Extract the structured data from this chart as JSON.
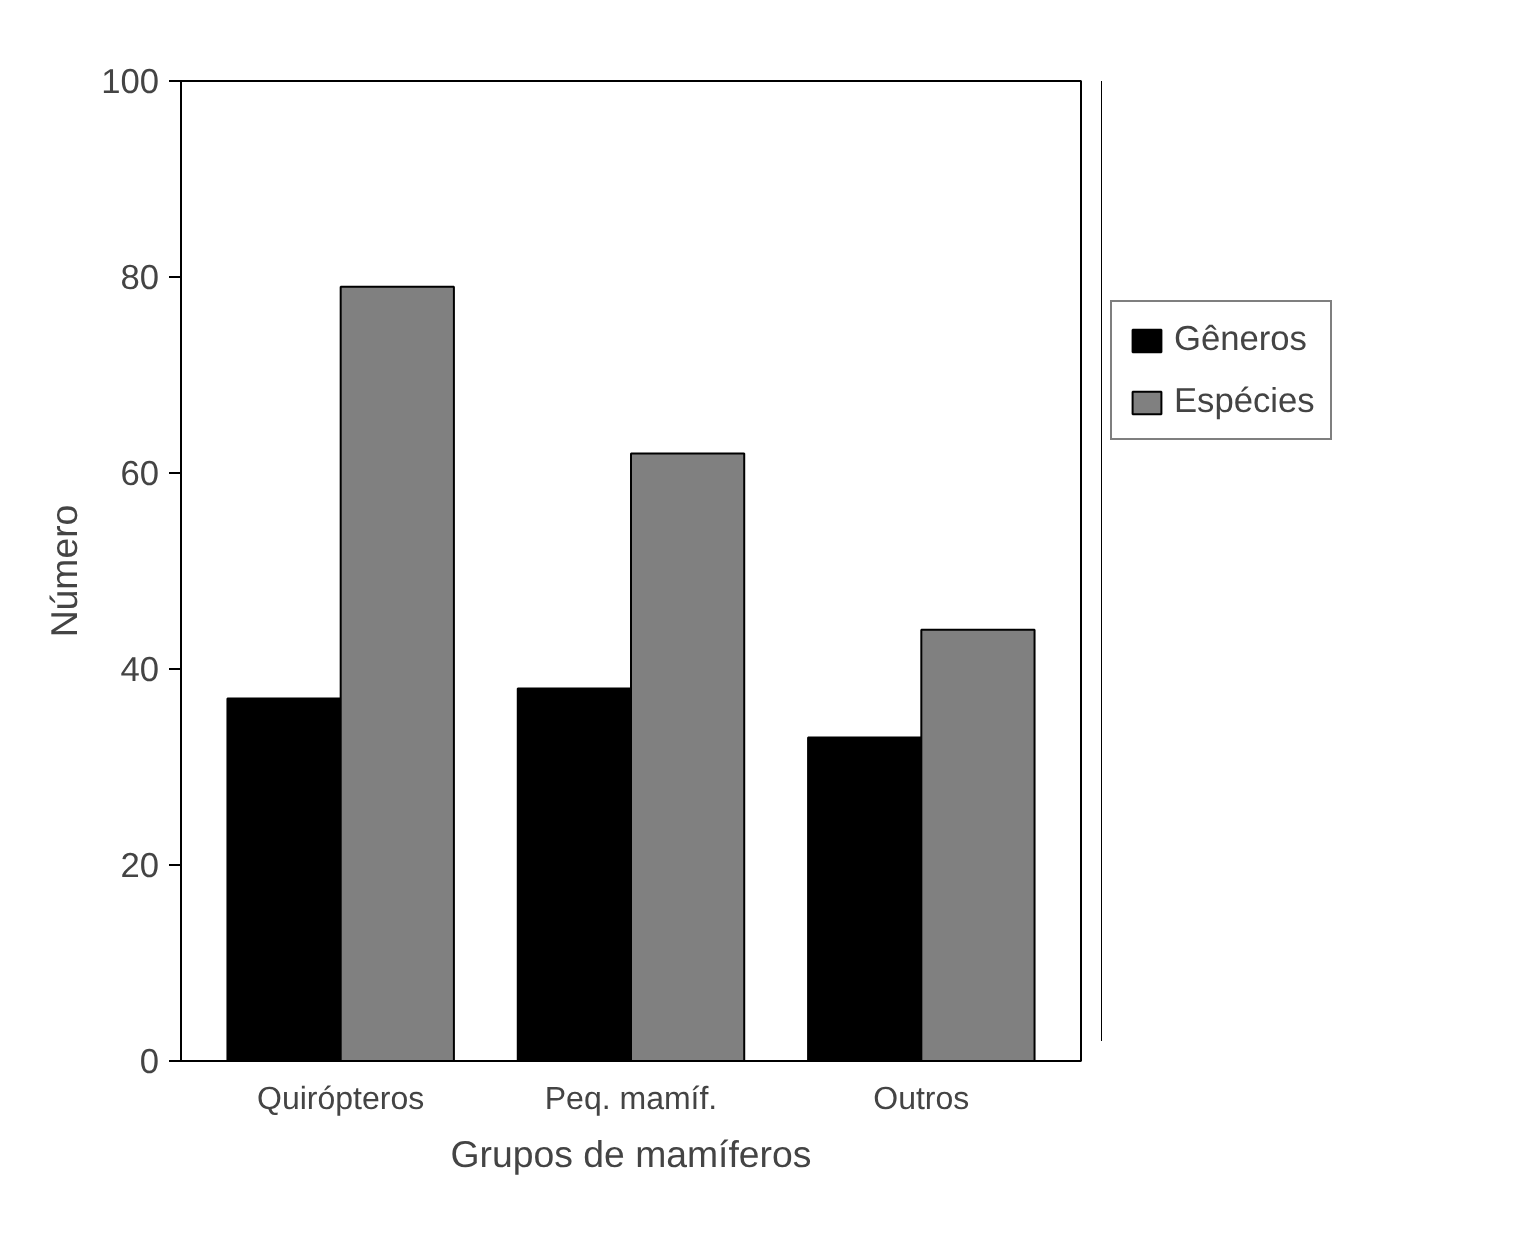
{
  "chart_data": {
    "type": "bar",
    "xlabel": "Grupos de mamíferos",
    "ylabel": "Número",
    "categories": [
      "Quirópteros",
      "Peq. mamíf.",
      "Outros"
    ],
    "series": [
      {
        "name": "Gêneros",
        "color": "#000000",
        "values": [
          37,
          38,
          33
        ]
      },
      {
        "name": "Espécies",
        "color": "#808080",
        "values": [
          79,
          62,
          44
        ]
      }
    ],
    "ylim": [
      0,
      100
    ],
    "yticks": [
      0,
      20,
      40,
      60,
      80,
      100
    ],
    "grid": false,
    "legend": "right"
  }
}
